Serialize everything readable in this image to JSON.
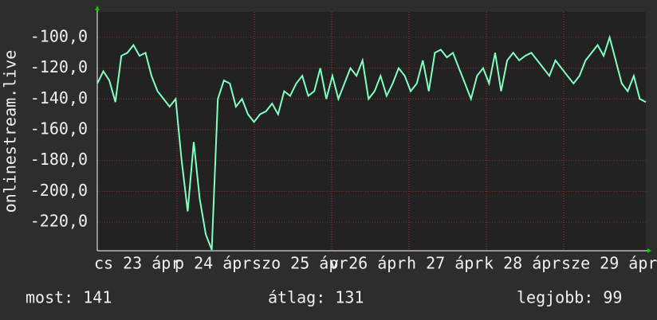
{
  "chart_data": {
    "type": "line",
    "ylabel": "onlinestream.live",
    "x_labels": [
      "cs 23 ápr",
      "p 24 ápr",
      "szo 25 ápr",
      "v 26 ápr",
      "h 27 ápr",
      "k 28 ápr",
      "sze 29 ápr"
    ],
    "values": [
      -130,
      -122,
      -128,
      -142,
      -112,
      -110,
      -105,
      -112,
      -110,
      -125,
      -135,
      -140,
      -145,
      -140,
      -180,
      -213,
      -168,
      -205,
      -228,
      -238,
      -140,
      -128,
      -130,
      -145,
      -140,
      -150,
      -155,
      -150,
      -148,
      -143,
      -150,
      -135,
      -138,
      -130,
      -125,
      -138,
      -135,
      -120,
      -140,
      -125,
      -140,
      -130,
      -120,
      -125,
      -115,
      -140,
      -135,
      -125,
      -138,
      -130,
      -120,
      -125,
      -135,
      -130,
      -115,
      -135,
      -110,
      -108,
      -113,
      -110,
      -120,
      -130,
      -140,
      -125,
      -120,
      -130,
      -110,
      -135,
      -115,
      -110,
      -115,
      -112,
      -110,
      -115,
      -120,
      -125,
      -115,
      -120,
      -125,
      -130,
      -125,
      -115,
      -110,
      -105,
      -112,
      -100,
      -115,
      -130,
      -135,
      -125,
      -140,
      -142
    ],
    "color": "#80ffbf",
    "ylim": [
      -238.6,
      -83.5
    ],
    "yticks": [
      {
        "value": -220,
        "label": "-220,0"
      },
      {
        "value": -200,
        "label": "-200,0"
      },
      {
        "value": -180,
        "label": "-180,0"
      },
      {
        "value": -160,
        "label": "-160,0"
      },
      {
        "value": -140,
        "label": "-140,0"
      },
      {
        "value": -120,
        "label": "-120,0"
      },
      {
        "value": -100,
        "label": "-100,0"
      }
    ],
    "grid": true,
    "footer": [
      "most: 141",
      "átlag: 131",
      "legjobb: 99"
    ]
  }
}
